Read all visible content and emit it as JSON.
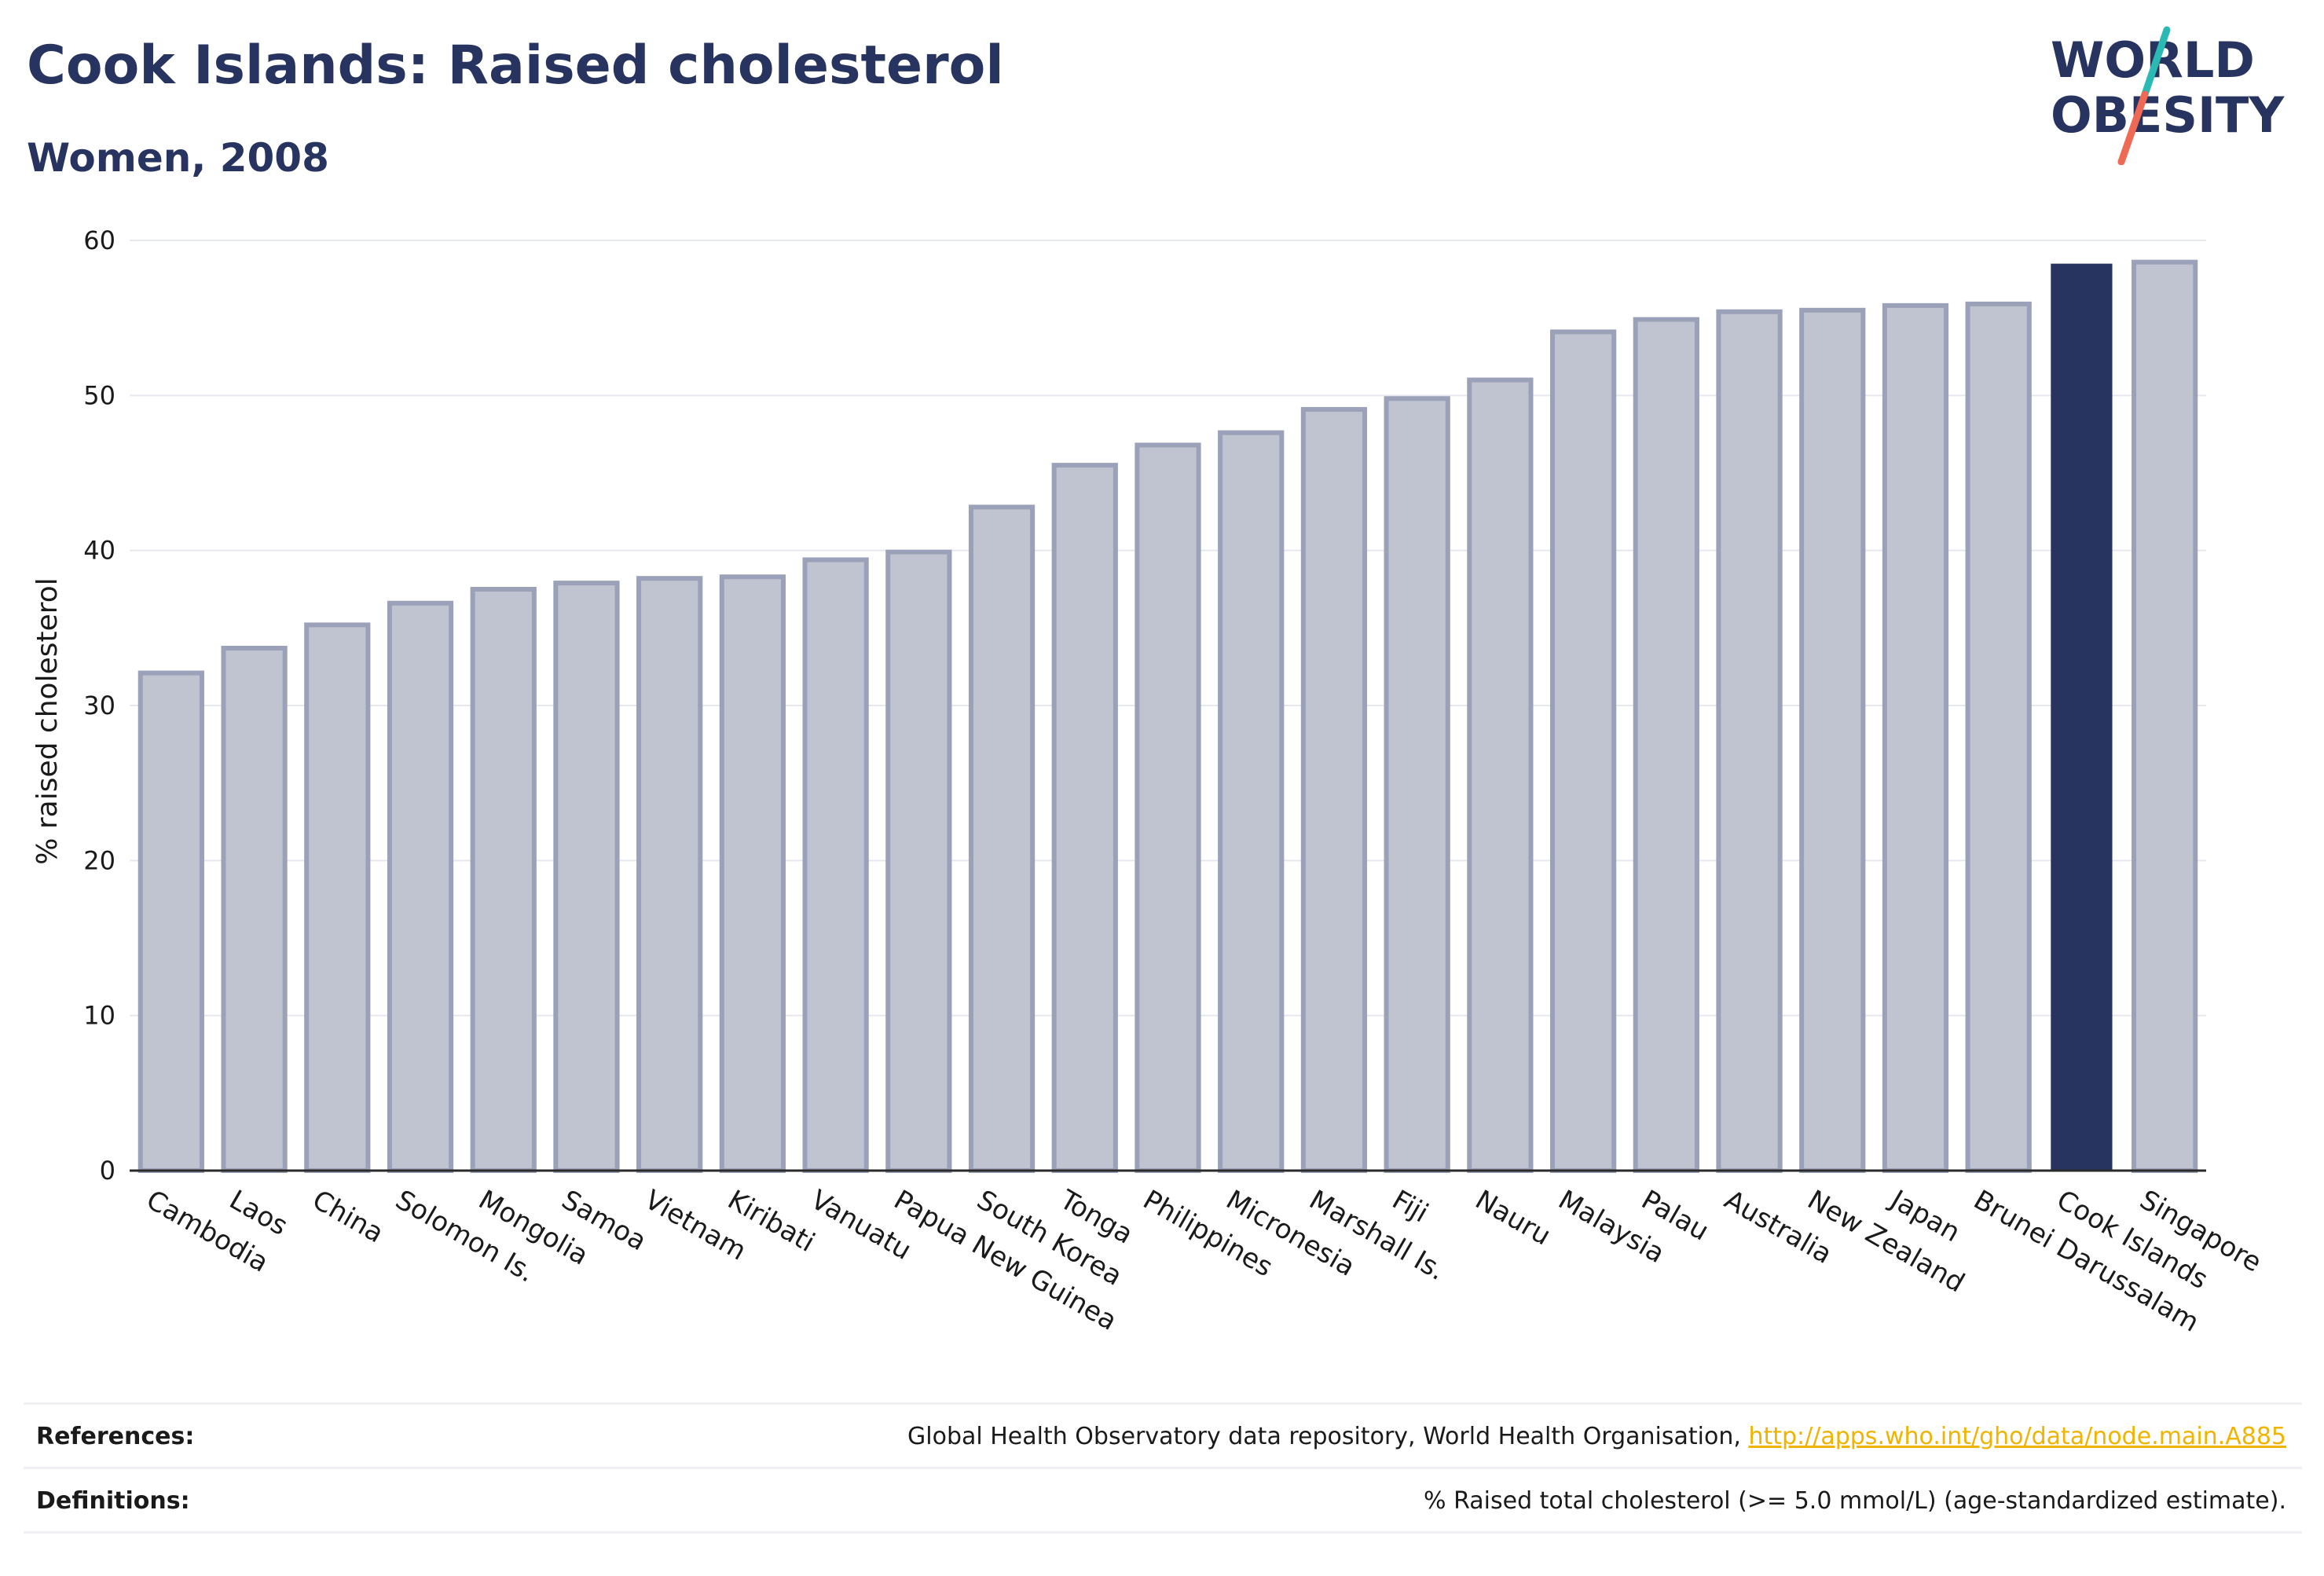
{
  "header": {
    "title": "Cook Islands: Raised cholesterol",
    "subtitle": "Women, 2008"
  },
  "logo": {
    "line1": "WORLD",
    "line2": "OBESITY",
    "colors": {
      "text": "#283460",
      "slash_teal": "#2bb9b4",
      "slash_coral": "#ee6a55"
    }
  },
  "chart_data": {
    "type": "bar",
    "ylabel": "% raised cholesterol",
    "ylim": [
      0,
      60
    ],
    "yticks": [
      0,
      10,
      20,
      30,
      40,
      50,
      60
    ],
    "grid": true,
    "highlight": "Cook Islands",
    "colors": {
      "bar": "#283460",
      "bar_faded_fill": "#c0c4d0",
      "bar_faded_stroke": "#9aa1b8",
      "highlight": "#283460"
    },
    "categories": [
      "Cambodia",
      "Laos",
      "China",
      "Solomon Is.",
      "Mongolia",
      "Samoa",
      "Vietnam",
      "Kiribati",
      "Vanuatu",
      "Papua New Guinea",
      "South Korea",
      "Tonga",
      "Philippines",
      "Micronesia",
      "Marshall Is.",
      "Fiji",
      "Nauru",
      "Malaysia",
      "Palau",
      "Australia",
      "New Zealand",
      "Japan",
      "Brunei Darussalam",
      "Cook Islands",
      "Singapore"
    ],
    "values": [
      32.1,
      33.7,
      35.2,
      36.6,
      37.5,
      37.9,
      38.2,
      38.3,
      39.4,
      39.9,
      42.8,
      45.5,
      46.8,
      47.6,
      49.1,
      49.8,
      51.0,
      54.1,
      54.9,
      55.4,
      55.5,
      55.8,
      55.9,
      58.5,
      58.6
    ]
  },
  "footer": {
    "references_label": "References:",
    "references_text": "Global Health Observatory data repository, World Health Organisation, ",
    "references_link": "http://apps.who.int/gho/data/node.main.A885",
    "definitions_label": "Definitions:",
    "definitions_text": "% Raised total cholesterol (>= 5.0 mmol/L) (age-standardized estimate)."
  }
}
